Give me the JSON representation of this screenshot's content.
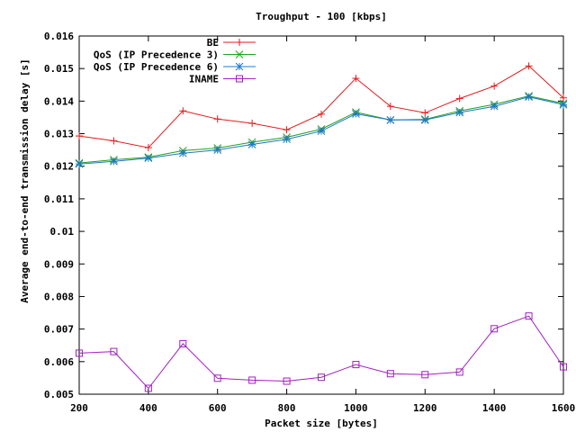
{
  "chart_data": {
    "type": "line",
    "title": "Troughput - 100 [kbps]",
    "xlabel": "Packet size [bytes]",
    "ylabel": "Average end-to-end transmission delay [s]",
    "xlim": [
      200,
      1600
    ],
    "ylim": [
      0.005,
      0.016
    ],
    "x_ticks": [
      200,
      400,
      600,
      800,
      1000,
      1200,
      1400,
      1600
    ],
    "x_tick_labels": [
      "200",
      "400",
      "600",
      "800",
      "1000",
      "1200",
      "1400",
      "1600"
    ],
    "y_ticks": [
      0.005,
      0.006,
      0.007,
      0.008,
      0.009,
      0.01,
      0.011,
      0.012,
      0.013,
      0.014,
      0.015,
      0.016
    ],
    "y_tick_labels": [
      "0.005",
      "0.006",
      "0.007",
      "0.008",
      "0.009",
      "0.01",
      "0.011",
      "0.012",
      "0.013",
      "0.014",
      "0.015",
      "0.016"
    ],
    "grid": false,
    "legend_position": "top-right",
    "x": [
      200,
      300,
      400,
      500,
      600,
      700,
      800,
      900,
      1000,
      1100,
      1200,
      1300,
      1400,
      1500,
      1600
    ],
    "series": [
      {
        "name": "BE",
        "color": "#e31a1c",
        "marker": "plus",
        "values": [
          0.01293,
          0.01278,
          0.01257,
          0.0137,
          0.01345,
          0.01332,
          0.01312,
          0.0136,
          0.0147,
          0.01384,
          0.01364,
          0.01408,
          0.01446,
          0.01508,
          0.0141
        ]
      },
      {
        "name": "QoS (IP Precedence 3)",
        "color": "#1fa11f",
        "marker": "cross",
        "values": [
          0.0121,
          0.0122,
          0.01228,
          0.01248,
          0.01256,
          0.01274,
          0.01289,
          0.01314,
          0.01366,
          0.01342,
          0.01344,
          0.0137,
          0.0139,
          0.01416,
          0.01393
        ]
      },
      {
        "name": "QoS (IP Precedence 6)",
        "color": "#1f78c8",
        "marker": "star",
        "values": [
          0.01207,
          0.01215,
          0.01225,
          0.0124,
          0.0125,
          0.01267,
          0.01283,
          0.01308,
          0.01361,
          0.01342,
          0.01342,
          0.01365,
          0.01384,
          0.01413,
          0.01389
        ]
      },
      {
        "name": "INAME",
        "color": "#a020c0",
        "marker": "square",
        "values": [
          0.00626,
          0.00631,
          0.00518,
          0.00655,
          0.00549,
          0.00543,
          0.0054,
          0.00552,
          0.00591,
          0.00563,
          0.0056,
          0.00568,
          0.00701,
          0.0074,
          0.00584
        ]
      }
    ]
  }
}
